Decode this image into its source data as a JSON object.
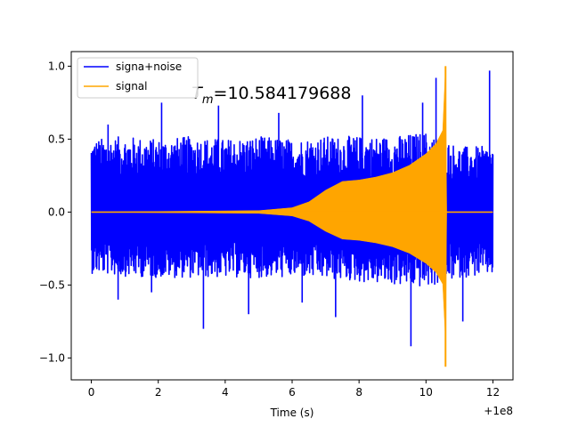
{
  "chart_data": {
    "type": "line",
    "title": "",
    "xlabel": "Time (s)",
    "ylabel": "",
    "x_offset_label": "+1e8",
    "xlim": [
      -0.6,
      12.6
    ],
    "ylim": [
      -1.15,
      1.1
    ],
    "x_ticks": [
      0,
      2,
      4,
      6,
      8,
      10,
      12
    ],
    "x_tick_labels": [
      "0",
      "2",
      "4",
      "6",
      "8",
      "10",
      "12"
    ],
    "y_ticks": [
      -1.0,
      -0.5,
      0.0,
      0.5,
      1.0
    ],
    "y_tick_labels": [
      "−1.0",
      "−0.5",
      "0.0",
      "0.5",
      "1.0"
    ],
    "grid": false,
    "legend_position": "top-left",
    "annotation": {
      "symbol": "T",
      "subscript": "m",
      "value_text": "=10.584179688",
      "x": 3.0,
      "y": 0.82
    },
    "series": [
      {
        "name": "signa+noise",
        "color": "#0000ff",
        "x_range": [
          0,
          12
        ],
        "envelope_pos": [
          [
            0,
            0.5
          ],
          [
            1,
            0.52
          ],
          [
            2,
            0.5
          ],
          [
            3,
            0.52
          ],
          [
            4,
            0.5
          ],
          [
            5,
            0.52
          ],
          [
            6,
            0.5
          ],
          [
            7,
            0.52
          ],
          [
            8,
            0.52
          ],
          [
            9,
            0.52
          ],
          [
            10,
            0.55
          ],
          [
            11,
            0.45
          ],
          [
            12,
            0.45
          ]
        ],
        "envelope_neg": [
          [
            0,
            -0.42
          ],
          [
            1,
            -0.44
          ],
          [
            2,
            -0.45
          ],
          [
            3,
            -0.45
          ],
          [
            4,
            -0.45
          ],
          [
            5,
            -0.45
          ],
          [
            6,
            -0.45
          ],
          [
            7,
            -0.46
          ],
          [
            8,
            -0.48
          ],
          [
            9,
            -0.5
          ],
          [
            10,
            -0.52
          ],
          [
            11,
            -0.45
          ],
          [
            12,
            -0.43
          ]
        ],
        "spikes": [
          [
            2.1,
            0.75
          ],
          [
            3.8,
            0.73
          ],
          [
            5.6,
            0.68
          ],
          [
            8.1,
            0.8
          ],
          [
            9.9,
            0.75
          ],
          [
            11.9,
            0.97
          ],
          [
            1.8,
            -0.55
          ],
          [
            3.35,
            -0.8
          ],
          [
            4.7,
            -0.7
          ],
          [
            7.3,
            -0.72
          ],
          [
            9.55,
            -0.92
          ],
          [
            11.1,
            -0.75
          ],
          [
            0.8,
            -0.6
          ],
          [
            6.3,
            -0.62
          ],
          [
            0.5,
            0.6
          ],
          [
            10.3,
            0.92
          ]
        ]
      },
      {
        "name": "signal",
        "color": "#ffa500",
        "envelope": [
          [
            0,
            0.0
          ],
          [
            5.0,
            0.01
          ],
          [
            6.0,
            0.03
          ],
          [
            6.5,
            0.07
          ],
          [
            7.0,
            0.15
          ],
          [
            7.5,
            0.21
          ],
          [
            8.0,
            0.22
          ],
          [
            8.5,
            0.24
          ],
          [
            9.0,
            0.27
          ],
          [
            9.5,
            0.32
          ],
          [
            10.0,
            0.4
          ],
          [
            10.3,
            0.47
          ],
          [
            10.5,
            0.56
          ],
          [
            10.584,
            1.0
          ],
          [
            10.62,
            0.0
          ],
          [
            12,
            0.0
          ]
        ],
        "peak": [
          10.584,
          1.0
        ],
        "trough": [
          10.584,
          -1.06
        ]
      }
    ]
  }
}
